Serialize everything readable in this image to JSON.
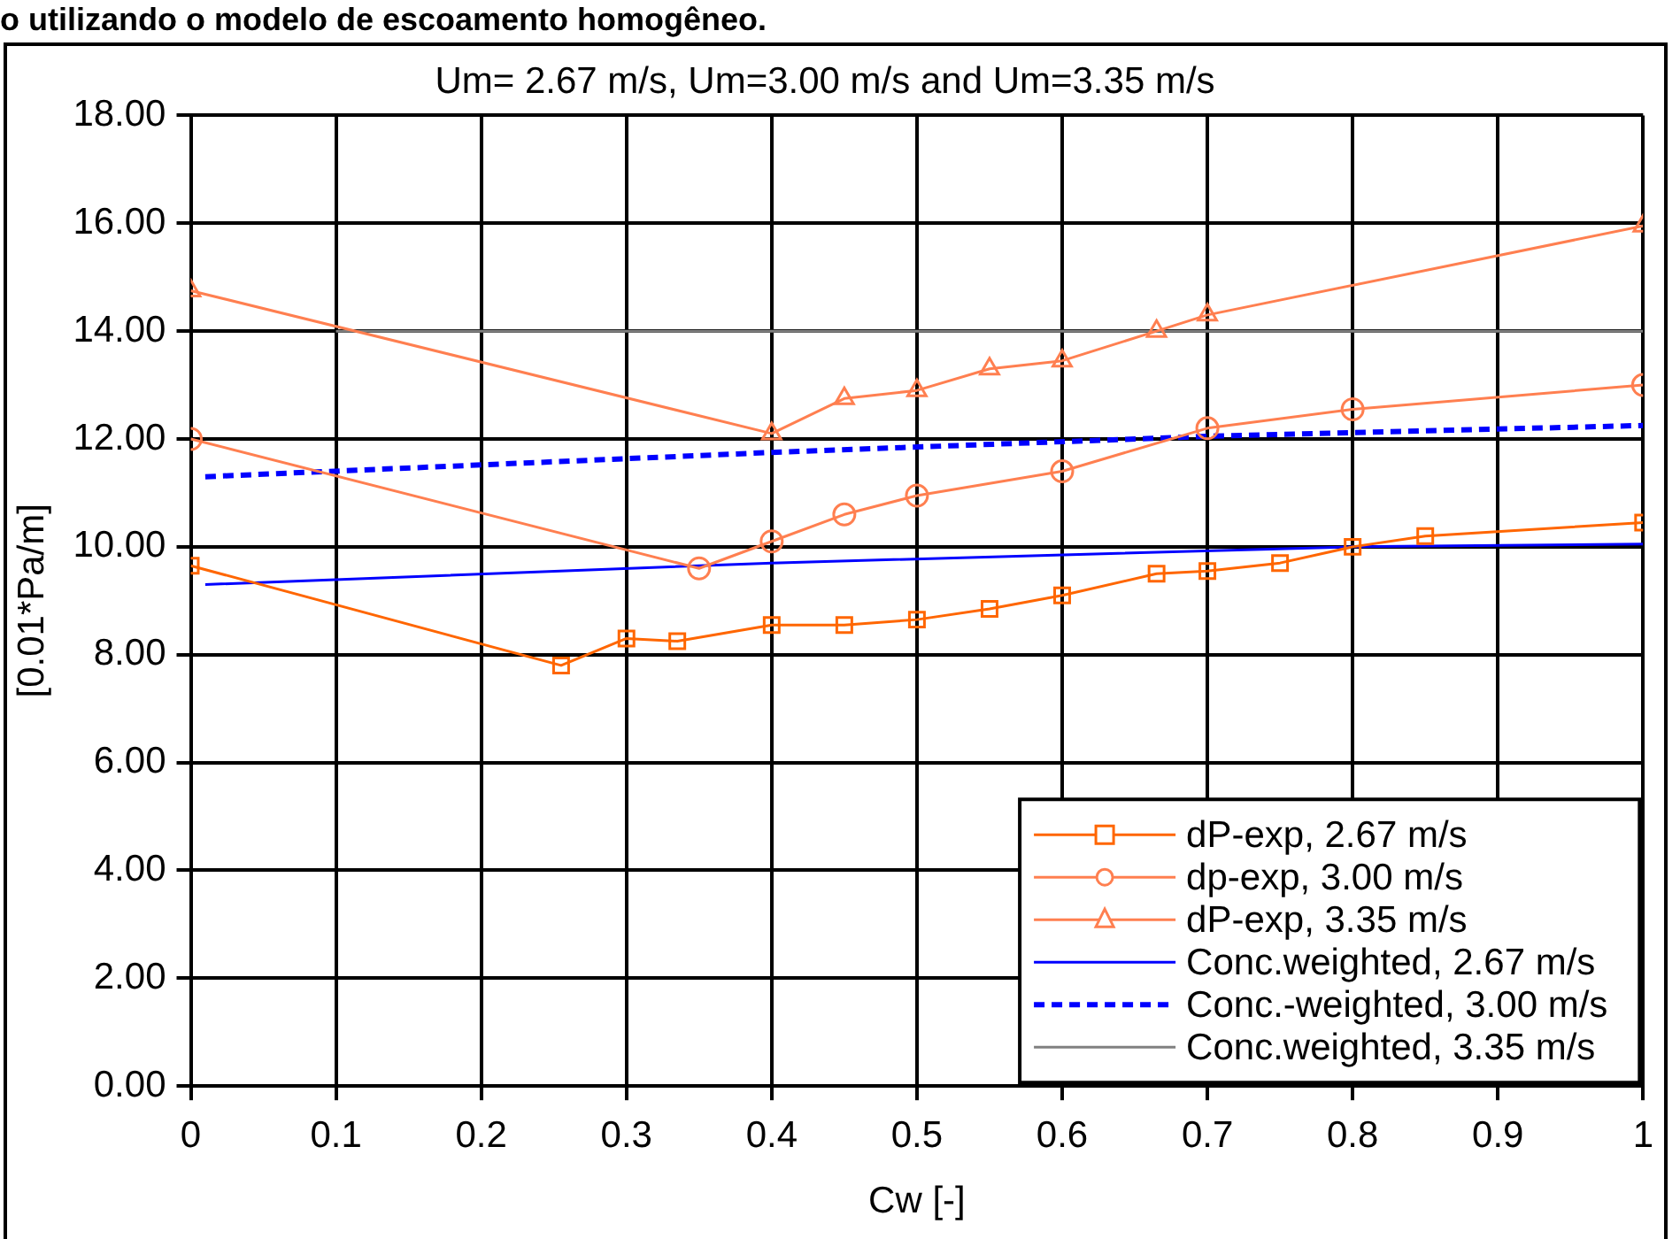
{
  "chart_data": {
    "type": "line",
    "title": "Um= 2.67 m/s, Um=3.00 m/s and Um=3.35 m/s",
    "xlabel": "Cw [-]",
    "ylabel": "[0.01*Pa/m]",
    "annotations": [
      "o utilizando o modelo de escoamento homogêneo."
    ],
    "xlim": [
      0,
      1
    ],
    "xticks": [
      0,
      0.1,
      0.2,
      0.3,
      0.4,
      0.5,
      0.6,
      0.7,
      0.8,
      0.9,
      1
    ],
    "ylim": [
      0,
      18
    ],
    "yticks": [
      {
        "value": 0,
        "label": "0.00"
      },
      {
        "value": 2,
        "label": "2.00"
      },
      {
        "value": 4,
        "label": "4.00"
      },
      {
        "value": 6,
        "label": "6.00"
      },
      {
        "value": 8,
        "label": "8.00"
      },
      {
        "value": 10,
        "label": "10.00"
      },
      {
        "value": 12,
        "label": "12.00"
      },
      {
        "value": 14,
        "label": "14.00"
      },
      {
        "value": 16,
        "label": "16.00"
      },
      {
        "value": 18,
        "label": "18.00"
      }
    ],
    "grid": true,
    "legend": "bottom right",
    "series": [
      {
        "name": "dP-exp, 2.67 m/s",
        "color": "#ff6600",
        "marker": "square",
        "line_style": "solid",
        "x": [
          0,
          0.255,
          0.3,
          0.335,
          0.4,
          0.45,
          0.5,
          0.55,
          0.6,
          0.665,
          0.7,
          0.75,
          0.8,
          0.85,
          1
        ],
        "values": [
          9.65,
          7.8,
          8.3,
          8.25,
          8.55,
          8.55,
          8.65,
          8.85,
          9.1,
          9.5,
          9.55,
          9.7,
          10.0,
          10.2,
          10.45
        ]
      },
      {
        "name": "dp-exp, 3.00 m/s",
        "color": "#ff7f50",
        "marker": "circle",
        "line_style": "solid",
        "x": [
          0,
          0.35,
          0.4,
          0.45,
          0.5,
          0.6,
          0.7,
          0.8,
          1
        ],
        "values": [
          12.0,
          9.6,
          10.1,
          10.6,
          10.95,
          11.4,
          12.2,
          12.55,
          13.0
        ]
      },
      {
        "name": "dP-exp, 3.35 m/s",
        "color": "#ff7f50",
        "marker": "triangle",
        "line_style": "solid",
        "x": [
          0,
          0.4,
          0.45,
          0.5,
          0.55,
          0.6,
          0.665,
          0.7,
          1
        ],
        "values": [
          14.75,
          12.1,
          12.75,
          12.9,
          13.3,
          13.45,
          14.0,
          14.3,
          15.95
        ]
      },
      {
        "name": "Conc.weighted, 2.67 m/s",
        "color": "#0000ff",
        "marker": "none",
        "line_style": "solid",
        "x": [
          0.01,
          0.4,
          0.8,
          1
        ],
        "values": [
          9.3,
          9.7,
          10.0,
          10.05
        ]
      },
      {
        "name": "Conc.-weighted, 3.00 m/s",
        "color": "#0000ff",
        "marker": "none",
        "line_style": "dashed",
        "x": [
          0.01,
          0.4,
          0.7,
          1
        ],
        "values": [
          11.3,
          11.75,
          12.05,
          12.25
        ]
      },
      {
        "name": "Conc.weighted, 3.35 m/s",
        "color": "#808080",
        "marker": "none",
        "line_style": "solid",
        "x": [
          0.1,
          1
        ],
        "values": [
          14.0,
          14.0
        ]
      }
    ]
  }
}
